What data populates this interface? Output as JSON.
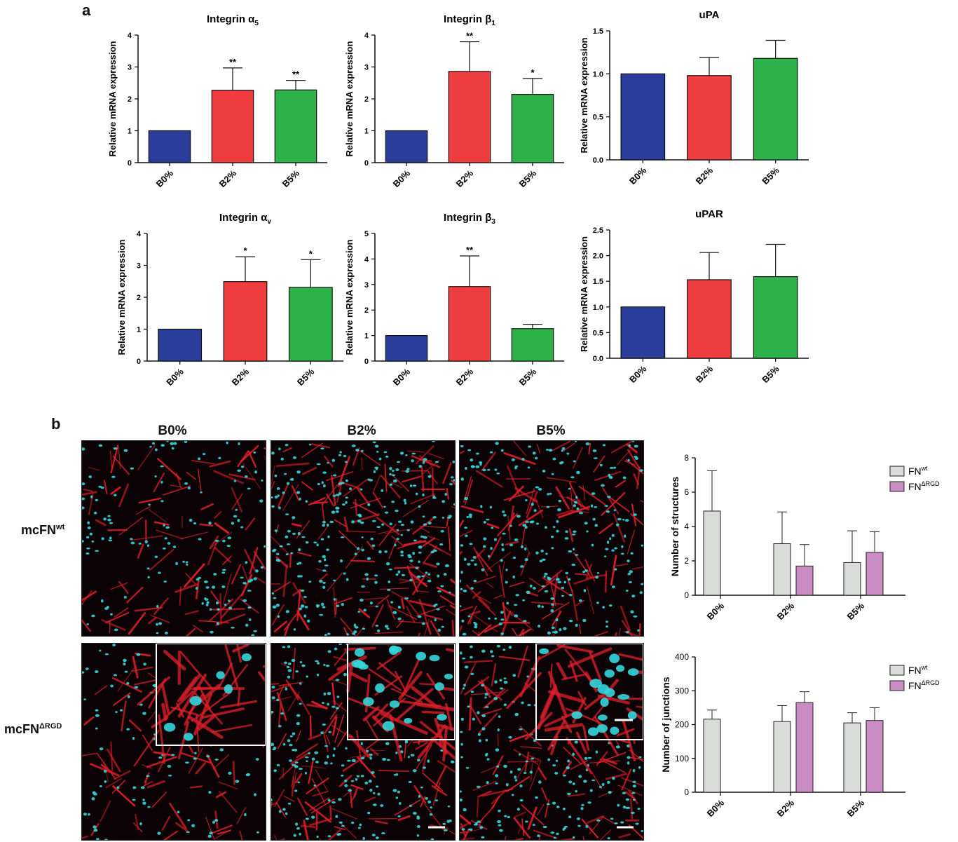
{
  "panel_a_label": "a",
  "panel_b_label": "b",
  "colors": {
    "B0%": "#2b3d9b",
    "B2%": "#ee3c3f",
    "B5%": "#2db24a",
    "FNwt": "#d9dcd8",
    "FNdRGD": "#c98cc3",
    "nuclei": "#34d6dc",
    "actin": "#e01f2a"
  },
  "chart_data": [
    {
      "type": "bar",
      "title": "Integrin α5",
      "ylabel": "Relative mRNA expression",
      "categories": [
        "B0%",
        "B2%",
        "B5%"
      ],
      "values": [
        1.0,
        2.27,
        2.28
      ],
      "errors": [
        0,
        0.7,
        0.3
      ],
      "sig": [
        "",
        "**",
        "**"
      ],
      "ylim": [
        0,
        4
      ],
      "yticks": [
        "0",
        "1",
        "2",
        "3",
        "4"
      ]
    },
    {
      "type": "bar",
      "title": "Integrin β1",
      "ylabel": "Relative mRNA expression",
      "categories": [
        "B0%",
        "B2%",
        "B5%"
      ],
      "values": [
        1.0,
        2.86,
        2.14
      ],
      "errors": [
        0,
        0.93,
        0.5
      ],
      "sig": [
        "",
        "**",
        "*"
      ],
      "ylim": [
        0,
        4
      ],
      "yticks": [
        "0",
        "1",
        "2",
        "3",
        "4"
      ]
    },
    {
      "type": "bar",
      "title": "uPA",
      "ylabel": "Relative mRNA expression",
      "categories": [
        "B0%",
        "B2%",
        "B5%"
      ],
      "values": [
        1.0,
        0.98,
        1.18
      ],
      "errors": [
        0,
        0.21,
        0.21
      ],
      "sig": [
        "",
        "",
        ""
      ],
      "ylim": [
        0,
        1.5
      ],
      "yticks": [
        "0.0",
        "0.5",
        "1.0",
        "1.5"
      ]
    },
    {
      "type": "bar",
      "title": "Integrin αv",
      "ylabel": "Relative mRNA expression",
      "categories": [
        "B0%",
        "B2%",
        "B5%"
      ],
      "values": [
        1.0,
        2.49,
        2.31
      ],
      "errors": [
        0,
        0.78,
        0.87
      ],
      "sig": [
        "",
        "*",
        "*"
      ],
      "ylim": [
        0,
        4
      ],
      "yticks": [
        "0",
        "1",
        "2",
        "3",
        "4"
      ]
    },
    {
      "type": "bar",
      "title": "Integrin β3",
      "ylabel": "Relative mRNA expression",
      "categories": [
        "B0%",
        "B2%",
        "B5%"
      ],
      "values": [
        1.0,
        2.92,
        1.27
      ],
      "errors": [
        0,
        1.2,
        0.17
      ],
      "sig": [
        "",
        "**",
        ""
      ],
      "ylim": [
        0,
        5
      ],
      "yticks": [
        "0",
        "1",
        "2",
        "3",
        "4",
        "5"
      ]
    },
    {
      "type": "bar",
      "title": "uPAR",
      "ylabel": "Relative mRNA expression",
      "categories": [
        "B0%",
        "B2%",
        "B5%"
      ],
      "values": [
        1.0,
        1.53,
        1.59
      ],
      "errors": [
        0,
        0.53,
        0.63
      ],
      "sig": [
        "",
        "",
        ""
      ],
      "ylim": [
        0,
        2.5
      ],
      "yticks": [
        "0.0",
        "0.5",
        "1.0",
        "1.5",
        "2.0",
        "2.5"
      ]
    },
    {
      "type": "bar",
      "title": "",
      "ylabel": "Number of structures",
      "categories": [
        "B0%",
        "B2%",
        "B5%"
      ],
      "series": [
        {
          "name": "FN",
          "sup": "wt",
          "values": [
            4.9,
            3.0,
            1.9
          ],
          "errors": [
            2.35,
            1.85,
            1.85
          ]
        },
        {
          "name": "FN",
          "sup": "ΔRGD",
          "values": [
            null,
            1.7,
            2.5
          ],
          "errors": [
            null,
            1.25,
            1.2
          ]
        }
      ],
      "ylim": [
        0,
        8
      ],
      "yticks": [
        "0",
        "2",
        "4",
        "6",
        "8"
      ],
      "legend": "top-right"
    },
    {
      "type": "bar",
      "title": "",
      "ylabel": "Number of junctions",
      "categories": [
        "B0%",
        "B2%",
        "B5%"
      ],
      "series": [
        {
          "name": "FN",
          "sup": "wt",
          "values": [
            216,
            209,
            205
          ],
          "errors": [
            27,
            47,
            30
          ]
        },
        {
          "name": "FN",
          "sup": "ΔRGD",
          "values": [
            null,
            265,
            212
          ],
          "errors": [
            null,
            32,
            38
          ]
        }
      ],
      "ylim": [
        0,
        400
      ],
      "yticks": [
        "0",
        "100",
        "200",
        "300",
        "400"
      ],
      "legend": "top-right"
    }
  ],
  "microscopy": {
    "columns": [
      "B0%",
      "B2%",
      "B5%"
    ],
    "rows": [
      {
        "label": "mcFN",
        "sup": "wt"
      },
      {
        "label": "mcFN",
        "sup": "ΔRGD"
      }
    ]
  }
}
